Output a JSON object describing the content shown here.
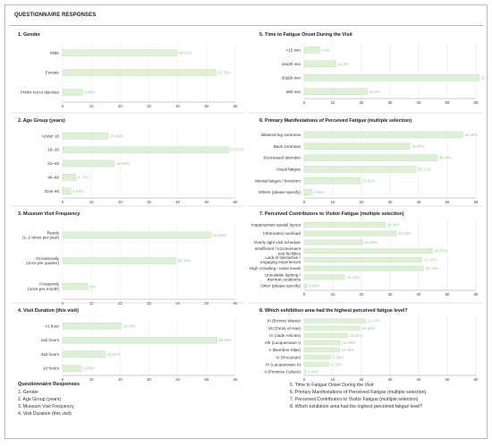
{
  "page_title": "QUESTIONNAIRE RESPONSES",
  "colors": {
    "bar_fill": "#dff0d8",
    "bar_stroke": "#b9dcae",
    "label": "#9bc98f",
    "grid": "#e6e6e6"
  },
  "legend": {
    "title": "Questionnaire Responses",
    "left": [
      "1. Gender",
      "2. Age Group (years)",
      "3. Museum Visit Frequency",
      "4. Visit Duration (this visit)"
    ],
    "right": [
      "5. Time to Fatigue Onset During the Visit",
      "6. Primary Manifestations of Perceived Fatigue (multiple selection)",
      "7. Perceived Contributors to Visitor Fatigue (multiple selection)",
      "8. Which exhibition area had the highest perceived fatigue level?"
    ]
  },
  "chart_data": [
    {
      "type": "bar",
      "orientation": "horizontal",
      "title": "1. Gender",
      "categories": [
        [
          "Male"
        ],
        [
          "Female"
        ],
        [
          "Prefer not to disclose"
        ]
      ],
      "values": [
        39.61,
        53.35,
        6.94
      ],
      "value_labels": [
        "39.61%",
        "53.35%",
        "6.94%"
      ],
      "xlim": [
        0,
        60
      ],
      "ticks": [
        "0",
        "10",
        "20",
        "30",
        "40",
        "50",
        "60"
      ],
      "grid": true
    },
    {
      "type": "bar",
      "orientation": "horizontal",
      "title": "2. Age Group (years)",
      "categories": [
        [
          "Under 18"
        ],
        [
          "18–30"
        ],
        [
          "31–45"
        ],
        [
          "46–60"
        ],
        [
          "Over 60"
        ]
      ],
      "values": [
        15.84,
        57.87,
        18.06,
        4.74,
        2.84
      ],
      "value_labels": [
        "15.84%",
        "57.87%",
        "18.06%",
        "4.74%",
        "2.84%"
      ],
      "xlim": [
        0,
        60
      ],
      "ticks": [
        "0",
        "10",
        "20",
        "30",
        "40",
        "50",
        "60"
      ],
      "grid": true
    },
    {
      "type": "bar",
      "orientation": "horizontal",
      "title": "3. Museum Visit Frequency",
      "categories": [
        [
          "Rarely",
          "(1–2 times per year)"
        ],
        [
          "Occasionally",
          "(once per quarter)"
        ],
        [
          "Frequently",
          "(once per month)"
        ]
      ],
      "values": [
        51.66,
        39.34,
        9
      ],
      "value_labels": [
        "51.66%",
        "39.34%",
        "9%"
      ],
      "xlim": [
        0,
        60
      ],
      "ticks": [
        "0",
        "10",
        "20",
        "30",
        "40",
        "50",
        "60"
      ],
      "grid": true
    },
    {
      "type": "bar",
      "orientation": "horizontal",
      "title": "4. Visit Duration (this visit)",
      "categories": [
        [
          "<1 hour"
        ],
        [
          "1≤2 hours"
        ],
        [
          "2≤3 hours"
        ],
        [
          "≥3 hours"
        ]
      ],
      "values": [
        20.28,
        53.66,
        14.81,
        6.63
      ],
      "value_labels": [
        "20.28%",
        "53.66%",
        "14.81%",
        "6.63%"
      ],
      "xlim": [
        0,
        60
      ],
      "ticks": [
        "0",
        "10",
        "20",
        "30",
        "40",
        "50",
        "60"
      ],
      "grid": true
    },
    {
      "type": "bar",
      "orientation": "horizontal",
      "title": "5. Time to Fatigue Onset During the Visit",
      "categories": [
        [
          "<15 min"
        ],
        [
          "15≤30 min"
        ],
        [
          "30≤60 min"
        ],
        [
          "≥60 min"
        ]
      ],
      "values": [
        5.4,
        11.2,
        61.2,
        22.2
      ],
      "value_labels": [
        "5.4%",
        "11.2%",
        "61.2%",
        "22.2%"
      ],
      "xlim": [
        0,
        60
      ],
      "ticks": [
        "0",
        "10",
        "20",
        "30",
        "40",
        "50",
        "60"
      ],
      "grid": true
    },
    {
      "type": "bar",
      "orientation": "horizontal",
      "title": "6. Primary Manifestations of Perceived Fatigue (multiple selection)",
      "categories": [
        [
          "Bilateral leg soreness"
        ],
        [
          "Back soreness"
        ],
        [
          "Decreased attention"
        ],
        [
          "Visual fatigue"
        ],
        [
          "Mental fatigue / boredom"
        ],
        [
          "Others (please specify)"
        ]
      ],
      "values": [
        55.45,
        36.97,
        46.45,
        39.12,
        19.61,
        2.84
      ],
      "value_labels": [
        "55.45%",
        "36.97%",
        "46.45%",
        "39.12%",
        "19.61%",
        "2.84%"
      ],
      "xlim": [
        0,
        60
      ],
      "ticks": [
        "0",
        "10",
        "20",
        "30",
        "40",
        "50",
        "60"
      ],
      "grid": true
    },
    {
      "type": "bar",
      "orientation": "horizontal",
      "title": "7. Perceived Contributors to Visitor Fatigue (multiple selection)",
      "categories": [
        [
          "Inappropriate spatial layout"
        ],
        [
          "Information overload"
        ],
        [
          "Overly tight visit schedule"
        ],
        [
          "Insufficient / inconvenient",
          "rest facilities"
        ],
        [
          "Lack of interactive /",
          "engaging experiences"
        ],
        [
          "High crowding / noise levels"
        ],
        [
          "Unsuitable lighting /",
          "thermal conditions"
        ],
        [
          "Other (please specify)"
        ]
      ],
      "values": [
        28.36,
        32.23,
        20.38,
        44.97,
        41.23,
        41.71,
        14.21,
        0.95
      ],
      "value_labels": [
        "28.36%",
        "32.23%",
        "20.38%",
        "44.97%",
        "41.23%",
        "41.71%",
        "14.21%",
        "0.95%"
      ],
      "xlim": [
        0,
        60
      ],
      "ticks": [
        "0",
        "10",
        "20",
        "30",
        "40",
        "50",
        "60"
      ],
      "grid": true
    },
    {
      "type": "bar",
      "orientation": "horizontal",
      "title": "8. Which exhibition area had the highest perceived fatigue level?",
      "categories": [
        [
          "III (Bronze Wares)"
        ],
        [
          "VII (Tomb of Han)"
        ],
        [
          "IV (Jade Articles)"
        ],
        [
          "VIII (Lacquerware I)"
        ],
        [
          "V (Bamboo Slips)"
        ],
        [
          "VI (Procelain)"
        ],
        [
          "IX (Lacquerware II)"
        ],
        [
          "II (Primitive Culture)"
        ]
      ],
      "values": [
        21.47,
        19.62,
        15.26,
        12.86,
        12.34,
        9.39,
        8.78,
        0.63
      ],
      "value_labels": [
        "21.47%",
        "19.62%",
        "15.26%",
        "12.86%",
        "12.34%",
        "9.39%",
        "8.78%",
        "0.63%"
      ],
      "xlim": [
        0,
        60
      ],
      "ticks": [
        "0",
        "10",
        "20",
        "30",
        "40",
        "50",
        "60"
      ],
      "grid": true
    }
  ]
}
